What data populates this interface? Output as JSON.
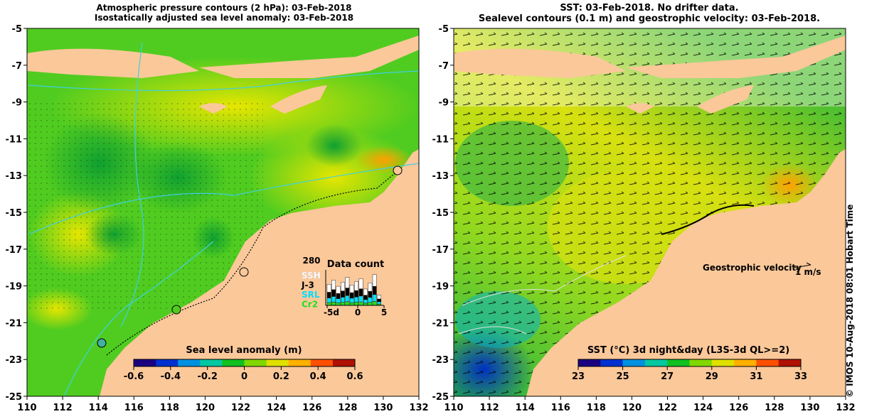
{
  "left_panel": {
    "title_line1": "Atmospheric pressure contours (2 hPa): 03-Feb-2018",
    "title_line2": "Isostatically adjusted sea level anomaly: 03-Feb-2018",
    "colorbar": {
      "label": "Sea level anomaly (m)",
      "ticks": [
        "-0.6",
        "-0.4",
        "-0.2",
        "0",
        "0.2",
        "0.4",
        "0.6"
      ],
      "colors": [
        "#1a0080",
        "#0030d0",
        "#0090e0",
        "#00c8a0",
        "#10c020",
        "#80d800",
        "#e0e000",
        "#ffb000",
        "#ff5000",
        "#b01000"
      ]
    },
    "data_count": {
      "title": "Data count",
      "max_label": "280",
      "satellites": [
        {
          "name": "SSH",
          "color": "#ffffff"
        },
        {
          "name": "J-3",
          "color": "#000000"
        },
        {
          "name": "SRL",
          "color": "#00e0ff"
        },
        {
          "name": "Cr2",
          "color": "#20e020"
        }
      ],
      "x_ticks": [
        "-5d",
        "0",
        "5"
      ]
    }
  },
  "right_panel": {
    "title_line1": "SST: 03-Feb-2018. No drifter data.",
    "title_line2": "Sealevel contours (0.1 m) and geostrophic velocity: 03-Feb-2018.",
    "velocity_legend": {
      "label": "Geostrophic velocity",
      "unit": "1 m/s"
    },
    "colorbar": {
      "label": "SST (°C) 3d night&day (L3S-3d QL>=2)",
      "ticks": [
        "23",
        "25",
        "27",
        "29",
        "31",
        "33"
      ],
      "colors": [
        "#1a0080",
        "#0030d0",
        "#0090e0",
        "#00c8a0",
        "#10c020",
        "#80d800",
        "#e0e000",
        "#ffb000",
        "#ff5000",
        "#b01000"
      ]
    }
  },
  "axes": {
    "x_ticks": [
      "110",
      "112",
      "114",
      "116",
      "118",
      "120",
      "122",
      "124",
      "126",
      "128",
      "130",
      "132"
    ],
    "y_ticks": [
      "-5",
      "-7",
      "-9",
      "-11",
      "-13",
      "-15",
      "-17",
      "-19",
      "-21",
      "-23",
      "-25"
    ]
  },
  "credit": "© IMOS 10-Aug-2018 08:01 Hobart Time",
  "colors": {
    "land": "#fbc89a",
    "coast": "#000000",
    "contour": "#40d0e0"
  }
}
